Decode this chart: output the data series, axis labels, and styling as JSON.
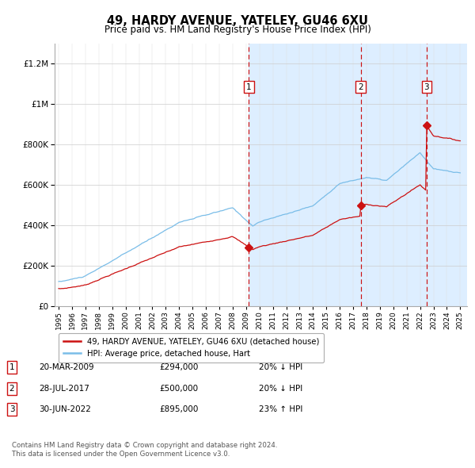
{
  "title": "49, HARDY AVENUE, YATELEY, GU46 6XU",
  "subtitle": "Price paid vs. HM Land Registry's House Price Index (HPI)",
  "legend_line1": "49, HARDY AVENUE, YATELEY, GU46 6XU (detached house)",
  "legend_line2": "HPI: Average price, detached house, Hart",
  "transactions": [
    {
      "num": 1,
      "date_str": "20-MAR-2009",
      "price": 294000,
      "pct": "20%",
      "dir": "↓",
      "year": 2009.21
    },
    {
      "num": 2,
      "date_str": "28-JUL-2017",
      "price": 500000,
      "pct": "20%",
      "dir": "↓",
      "year": 2017.57
    },
    {
      "num": 3,
      "date_str": "30-JUN-2022",
      "price": 895000,
      "pct": "23%",
      "dir": "↑",
      "year": 2022.49
    }
  ],
  "footer_line1": "Contains HM Land Registry data © Crown copyright and database right 2024.",
  "footer_line2": "This data is licensed under the Open Government Licence v3.0.",
  "hpi_color": "#7abde8",
  "price_color": "#cc1111",
  "shade_color": "#ddeeff",
  "vline_color": "#cc1111",
  "ylim": [
    0,
    1300000
  ],
  "xlim_start": 1994.7,
  "xlim_end": 2025.5
}
